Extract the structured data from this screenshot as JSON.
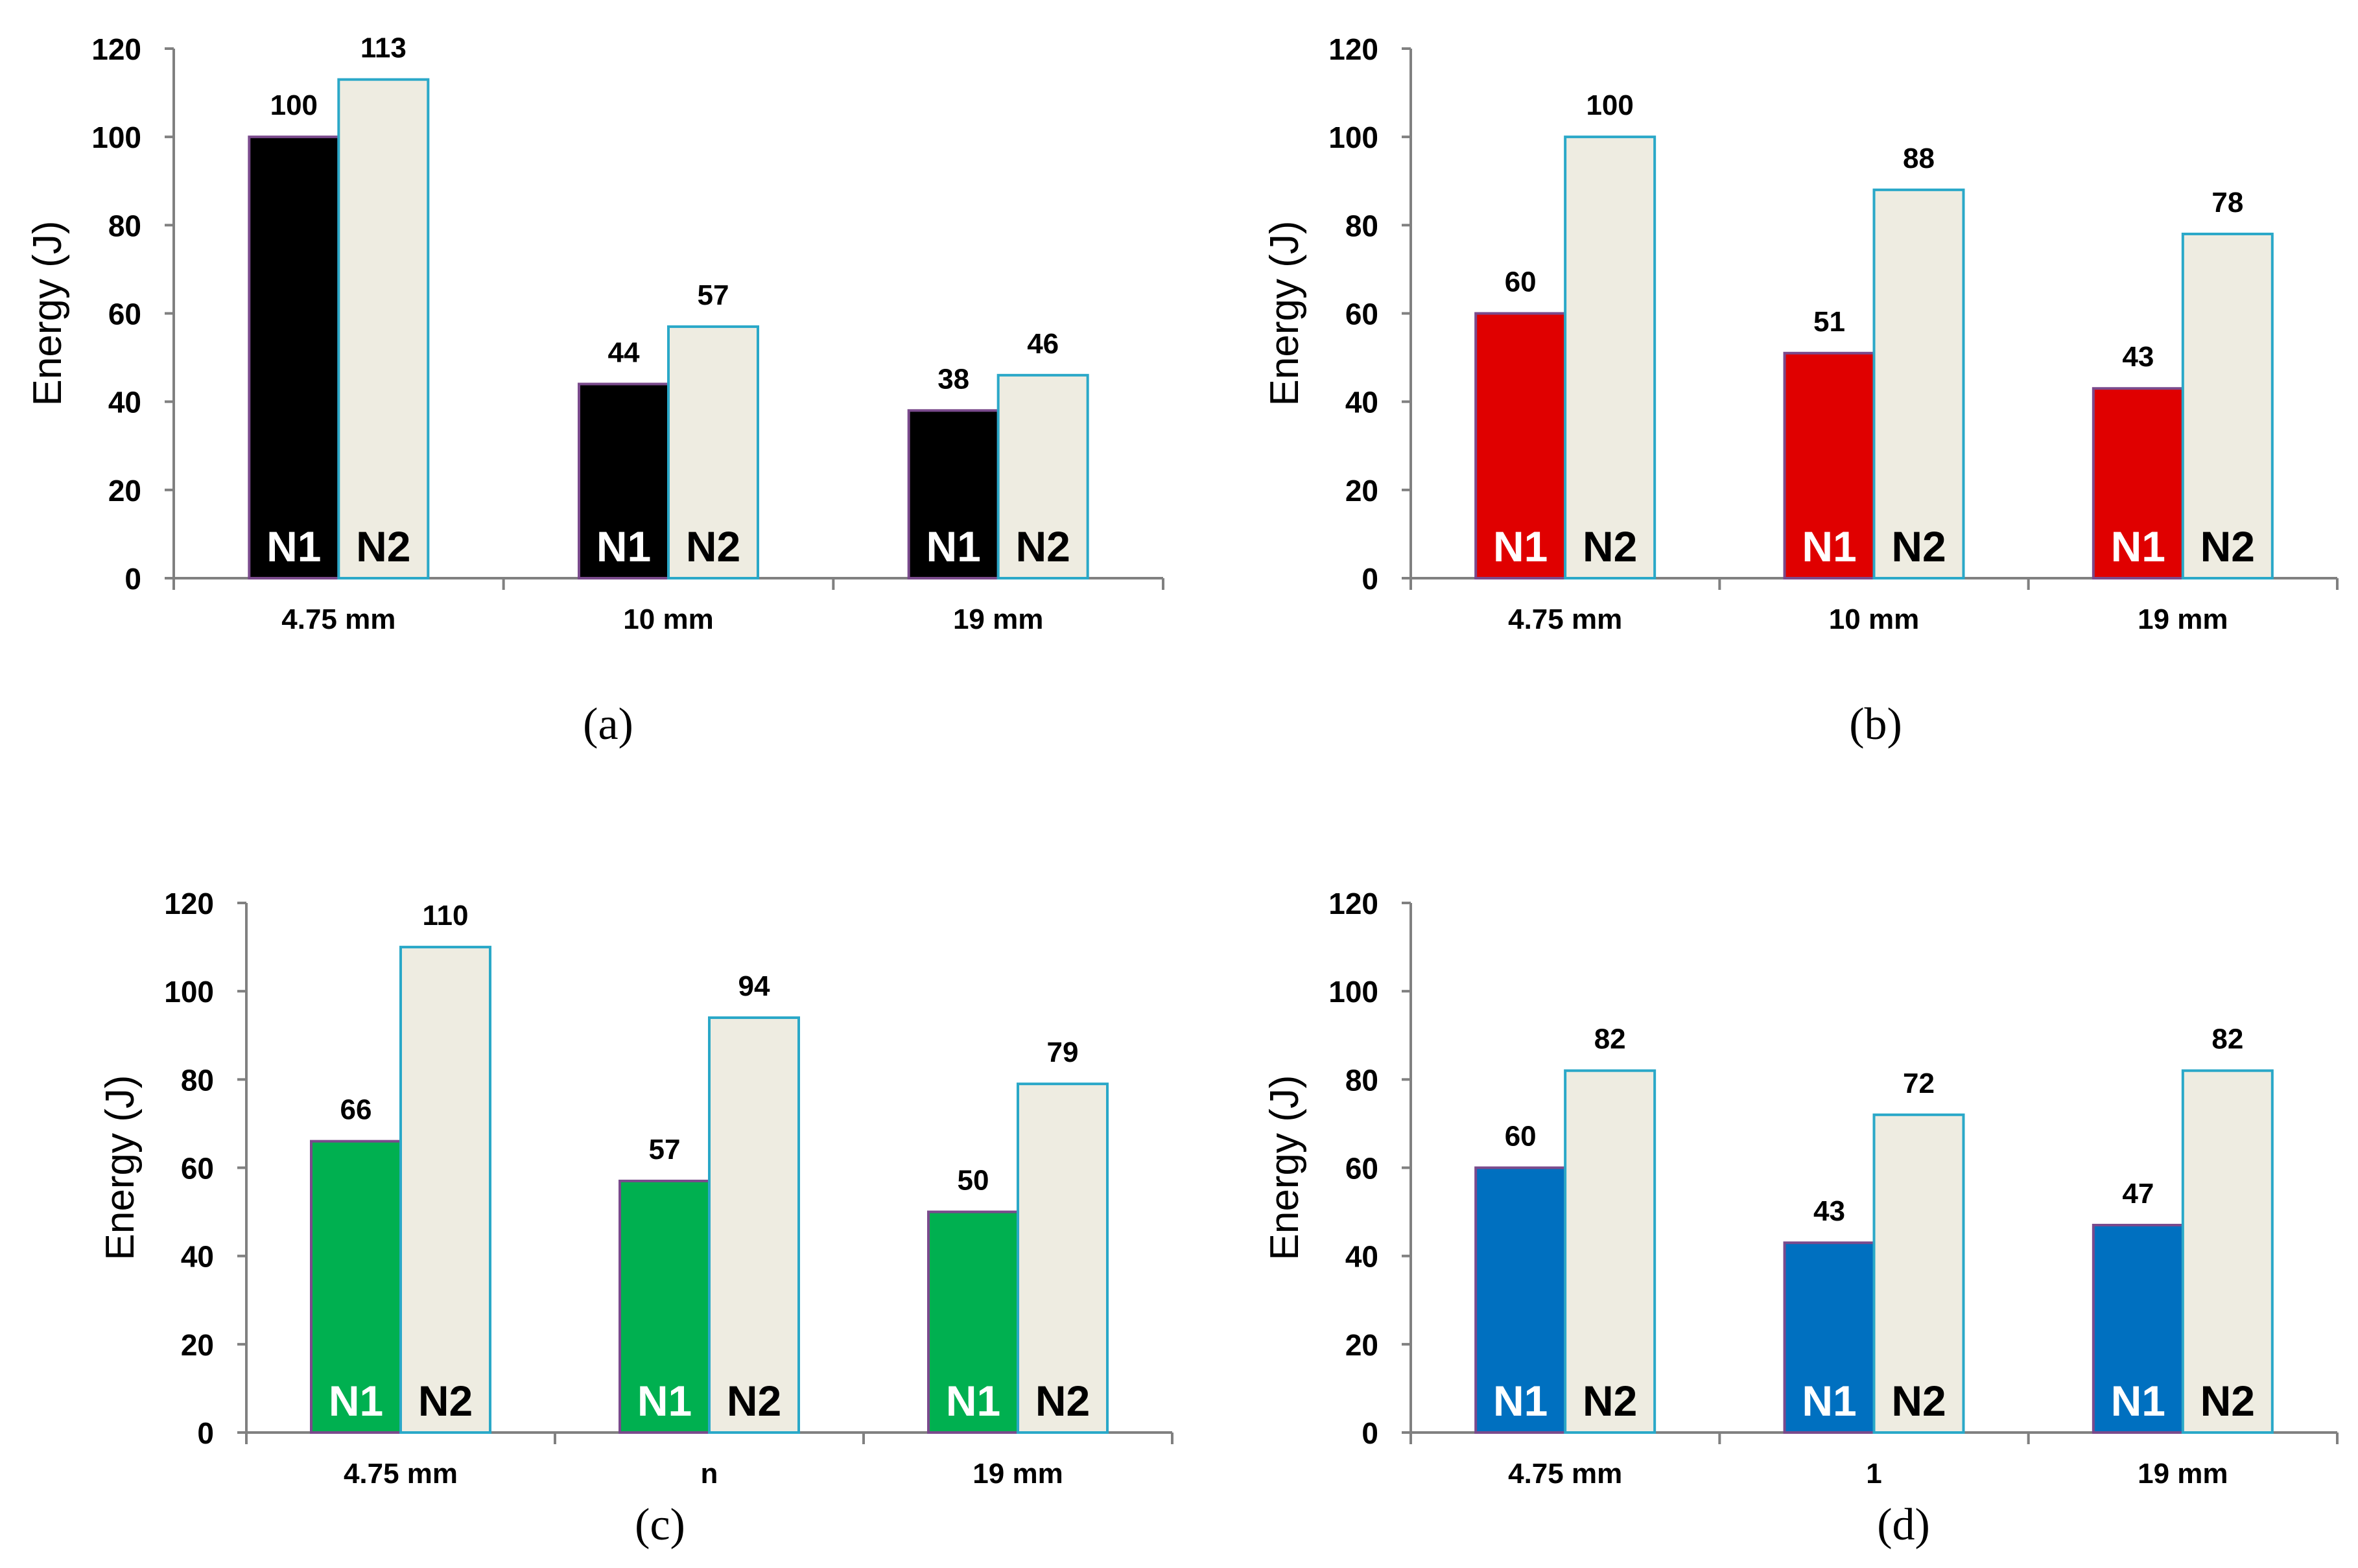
{
  "chart_data": [
    {
      "type": "bar",
      "panel_label": "(a)",
      "ylabel": "Energy (J)",
      "ylim": [
        0,
        120
      ],
      "yticks": [
        "0",
        "20",
        "40",
        "60",
        "80",
        "100",
        "120"
      ],
      "categories": [
        "4.75 mm",
        "10 mm",
        "19 mm"
      ],
      "series": [
        {
          "name": "N1",
          "values": [
            100,
            44,
            38
          ],
          "value_labels": [
            "100",
            "44",
            "38"
          ],
          "fill": "#000000",
          "stroke": "#7a4a8c",
          "text_color": "#ffffff"
        },
        {
          "name": "N2",
          "values": [
            113,
            57,
            46
          ],
          "value_labels": [
            "113",
            "57",
            "46"
          ],
          "fill": "#eeece1",
          "stroke": "#2aa8c8",
          "text_color": "#000000"
        }
      ]
    },
    {
      "type": "bar",
      "panel_label": "(b)",
      "ylabel": "Energy (J)",
      "ylim": [
        0,
        120
      ],
      "yticks": [
        "0",
        "20",
        "40",
        "60",
        "80",
        "100",
        "120"
      ],
      "categories": [
        "4.75 mm",
        "10 mm",
        "19 mm"
      ],
      "series": [
        {
          "name": "N1",
          "values": [
            60,
            51,
            43
          ],
          "value_labels": [
            "60",
            "51",
            "43"
          ],
          "fill": "#e00000",
          "stroke": "#7a4a8c",
          "text_color": "#ffffff"
        },
        {
          "name": "N2",
          "values": [
            100,
            88,
            78
          ],
          "value_labels": [
            "100",
            "88",
            "78"
          ],
          "fill": "#eeece1",
          "stroke": "#2aa8c8",
          "text_color": "#000000"
        }
      ]
    },
    {
      "type": "bar",
      "panel_label": "(c)",
      "ylabel": "Energy (J)",
      "ylim": [
        0,
        120
      ],
      "yticks": [
        "0",
        "20",
        "40",
        "60",
        "80",
        "100",
        "120"
      ],
      "categories": [
        "4.75 mm",
        "n",
        "19 mm"
      ],
      "series": [
        {
          "name": "N1",
          "values": [
            66,
            57,
            50
          ],
          "value_labels": [
            "66",
            "57",
            "50"
          ],
          "fill": "#00b050",
          "stroke": "#7a4a8c",
          "text_color": "#ffffff"
        },
        {
          "name": "N2",
          "values": [
            110,
            94,
            79
          ],
          "value_labels": [
            "110",
            "94",
            "79"
          ],
          "fill": "#eeece1",
          "stroke": "#2aa8c8",
          "text_color": "#000000"
        }
      ]
    },
    {
      "type": "bar",
      "panel_label": "(d)",
      "ylabel": "Energy (J)",
      "ylim": [
        0,
        120
      ],
      "yticks": [
        "0",
        "20",
        "40",
        "60",
        "80",
        "100",
        "120"
      ],
      "categories": [
        "4.75 mm",
        "1",
        "19 mm"
      ],
      "series": [
        {
          "name": "N1",
          "values": [
            60,
            43,
            47
          ],
          "value_labels": [
            "60",
            "43",
            "47"
          ],
          "fill": "#0070c0",
          "stroke": "#7a4a8c",
          "text_color": "#ffffff"
        },
        {
          "name": "N2",
          "values": [
            82,
            72,
            82
          ],
          "value_labels": [
            "82",
            "72",
            "82"
          ],
          "fill": "#eeece1",
          "stroke": "#2aa8c8",
          "text_color": "#000000"
        }
      ]
    }
  ]
}
